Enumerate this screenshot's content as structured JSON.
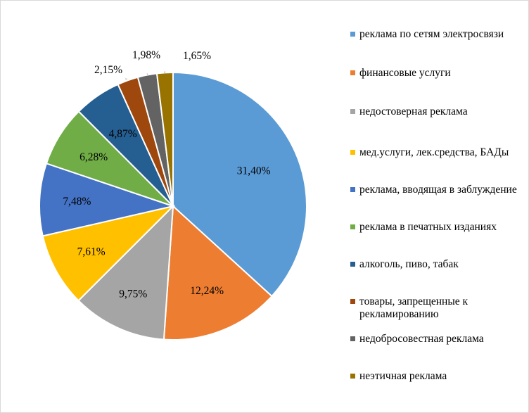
{
  "chart_data": {
    "type": "pie",
    "title": "",
    "start_angle_deg": 0,
    "direction": "clockwise",
    "legend_position": "right",
    "slices": [
      {
        "name": "реклама по сетям электросвязи",
        "value": 31.4,
        "label": "31,40%",
        "color": "#5B9BD5"
      },
      {
        "name": "финансовые услуги",
        "value": 12.24,
        "label": "12,24%",
        "color": "#ED7D31"
      },
      {
        "name": "недостоверная реклама",
        "value": 9.75,
        "label": "9,75%",
        "color": "#A5A5A5"
      },
      {
        "name": "мед.услуги, лек.средства, БАДы",
        "value": 7.61,
        "label": "7,61%",
        "color": "#FFC000"
      },
      {
        "name": "реклама, вводящая в заблуждение",
        "value": 7.48,
        "label": "7,48%",
        "color": "#4472C4"
      },
      {
        "name": "реклама в печатных изданиях",
        "value": 6.28,
        "label": "6,28%",
        "color": "#70AD47"
      },
      {
        "name": "алкоголь, пиво, табак",
        "value": 4.87,
        "label": "4,87%",
        "color": "#255E91"
      },
      {
        "name": "товары, запрещенные к рекламированию",
        "value": 2.15,
        "label": "2,15%",
        "color": "#9E480E"
      },
      {
        "name": "недобросовестная реклама",
        "value": 1.98,
        "label": "1,98%",
        "color": "#636363"
      },
      {
        "name": "неэтичная реклама",
        "value": 1.65,
        "label": "1,65%",
        "color": "#997300"
      }
    ]
  }
}
